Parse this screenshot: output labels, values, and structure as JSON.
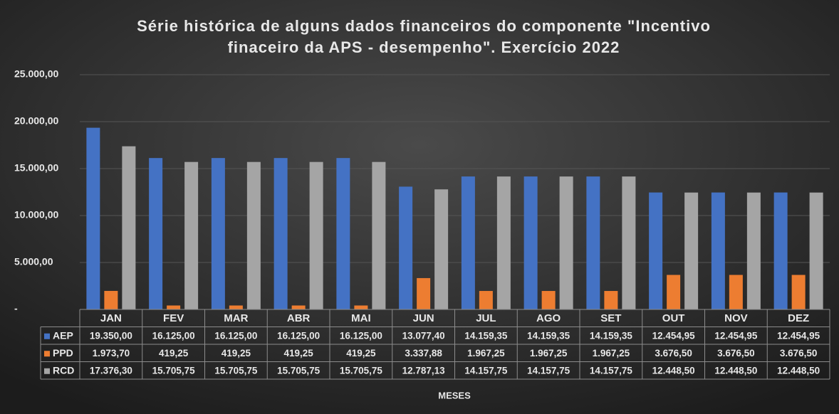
{
  "chart_data": {
    "type": "bar",
    "title": [
      "Série histórica de alguns dados financeiros do componente \"Incentivo",
      "finaceiro da APS - desempenho\". Exercício 2022"
    ],
    "x_label": "MESES",
    "categories": [
      "JAN",
      "FEV",
      "MAR",
      "ABR",
      "MAI",
      "JUN",
      "JUL",
      "AGO",
      "SET",
      "OUT",
      "NOV",
      "DEZ"
    ],
    "series": [
      {
        "name": "AEP",
        "color": "#4472c4",
        "values": [
          19350.0,
          16125.0,
          16125.0,
          16125.0,
          16125.0,
          13077.4,
          14159.35,
          14159.35,
          14159.35,
          12454.95,
          12454.95,
          12454.95
        ],
        "value_labels": [
          "19.350,00",
          "16.125,00",
          "16.125,00",
          "16.125,00",
          "16.125,00",
          "13.077,40",
          "14.159,35",
          "14.159,35",
          "14.159,35",
          "12.454,95",
          "12.454,95",
          "12.454,95"
        ]
      },
      {
        "name": "PPD",
        "color": "#ed7d31",
        "values": [
          1973.7,
          419.25,
          419.25,
          419.25,
          419.25,
          3337.88,
          1967.25,
          1967.25,
          1967.25,
          3676.5,
          3676.5,
          3676.5
        ],
        "value_labels": [
          "1.973,70",
          "419,25",
          "419,25",
          "419,25",
          "419,25",
          "3.337,88",
          "1.967,25",
          "1.967,25",
          "1.967,25",
          "3.676,50",
          "3.676,50",
          "3.676,50"
        ]
      },
      {
        "name": "RCD",
        "color": "#a5a5a5",
        "values": [
          17376.3,
          15705.75,
          15705.75,
          15705.75,
          15705.75,
          12787.13,
          14157.75,
          14157.75,
          14157.75,
          12448.5,
          12448.5,
          12448.5
        ],
        "value_labels": [
          "17.376,30",
          "15.705,75",
          "15.705,75",
          "15.705,75",
          "15.705,75",
          "12.787,13",
          "14.157,75",
          "14.157,75",
          "14.157,75",
          "12.448,50",
          "12.448,50",
          "12.448,50"
        ]
      }
    ],
    "ylim": [
      0,
      25000
    ],
    "yticks": [
      {
        "value": 0,
        "label": "-"
      },
      {
        "value": 5000,
        "label": "5.000,00"
      },
      {
        "value": 10000,
        "label": "10.000,00"
      },
      {
        "value": 15000,
        "label": "15.000,00"
      },
      {
        "value": 20000,
        "label": "20.000,00"
      },
      {
        "value": 25000,
        "label": "25.000,00"
      }
    ],
    "grid": true
  }
}
